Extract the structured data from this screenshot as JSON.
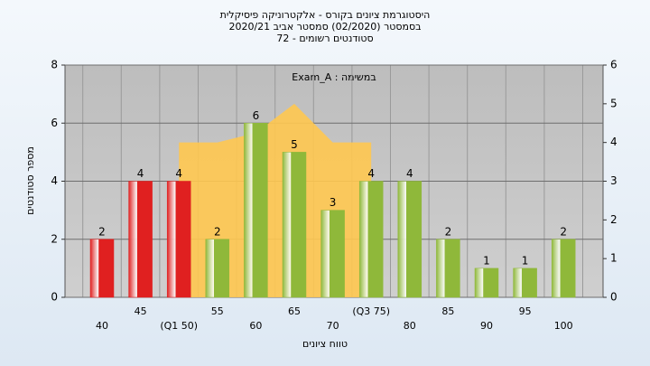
{
  "chart_data": {
    "type": "bar",
    "title": "היסטוגרמת ציונים בקורס - אלקטרוניקה פיסיקלית",
    "subtitle": "בסמסטר (02/2020) סמסטר אביב 2020/21",
    "subtitle2": "סטודנטים רשומים - 72",
    "annotation": "Exam_A : במשימה",
    "x_label": "טווח ציונים",
    "y_label": "מספר סטודנטים",
    "categories": [
      "40",
      "45",
      "(Q1 50)",
      "55",
      "60",
      "65",
      "70",
      "(Q3 75)",
      "80",
      "85",
      "90",
      "95",
      "100"
    ],
    "values": [
      2,
      4,
      4,
      2,
      6,
      5,
      3,
      4,
      4,
      2,
      1,
      1,
      2
    ],
    "colors": [
      "#e02020",
      "#e02020",
      "#e02020",
      "#8fb83a",
      "#8fb83a",
      "#8fb83a",
      "#8fb83a",
      "#8fb83a",
      "#8fb83a",
      "#8fb83a",
      "#8fb83a",
      "#8fb83a",
      "#8fb83a"
    ],
    "area": {
      "color": "#ffc850",
      "values": [
        null,
        null,
        4,
        4,
        4.25,
        5,
        4,
        4,
        null,
        null,
        null,
        null,
        null
      ]
    },
    "ylim": [
      0,
      8
    ],
    "yticks": [
      0,
      2,
      4,
      6,
      8
    ],
    "y2lim": [
      0,
      6
    ],
    "y2ticks": [
      0,
      1,
      2,
      3,
      4,
      5,
      6
    ],
    "grid": true
  }
}
